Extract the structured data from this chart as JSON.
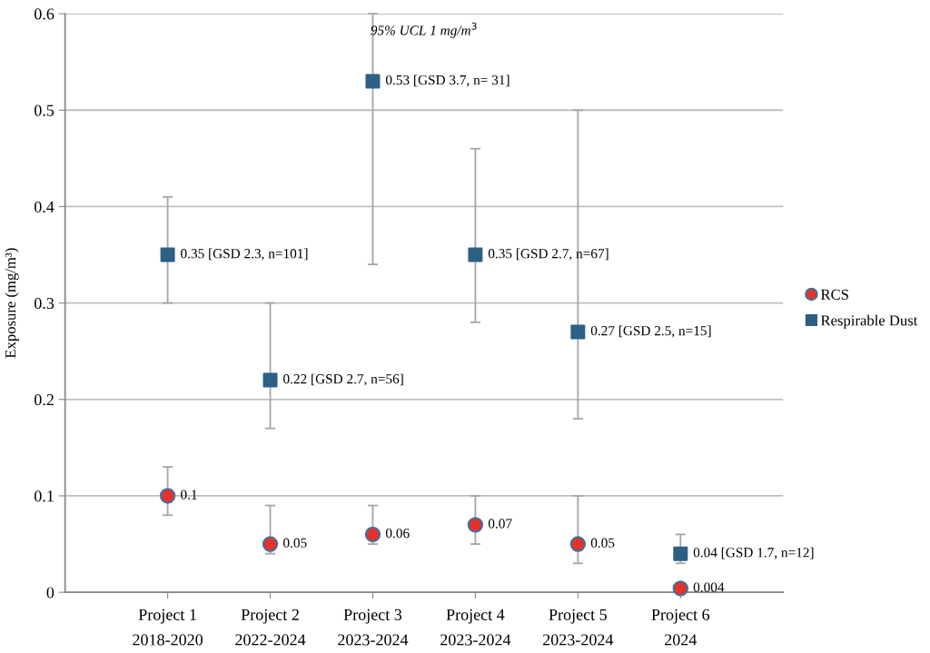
{
  "chart_data": {
    "type": "scatter",
    "ylabel": "Exposure (mg/m³)",
    "categories": [
      "Project 1\n2018-2020",
      "Project 2\n2022-2024",
      "Project 3\n2023-2024",
      "Project 4\n2023-2024",
      "Project 5\n2023-2024",
      "Project 6\n2024"
    ],
    "series": [
      {
        "name": "RCS",
        "color": "#e8302a",
        "marker": "circle",
        "values": [
          0.1,
          0.05,
          0.06,
          0.07,
          0.05,
          0.004
        ],
        "errors": [
          [
            0.08,
            0.13
          ],
          [
            0.04,
            0.09
          ],
          [
            0.05,
            0.09
          ],
          [
            0.05,
            0.1
          ],
          [
            0.03,
            0.1
          ],
          null
        ],
        "value_labels": [
          "0.1",
          "0.05",
          "0.06",
          "0.07",
          "0.05",
          "0.004"
        ]
      },
      {
        "name": "Respirable Dust",
        "color": "#2e5f84",
        "marker": "square",
        "values": [
          0.35,
          0.22,
          0.53,
          0.35,
          0.27,
          0.04
        ],
        "errors": [
          [
            0.3,
            0.41
          ],
          [
            0.17,
            0.3
          ],
          [
            0.34,
            0.6
          ],
          [
            0.28,
            0.46
          ],
          [
            0.18,
            0.5
          ],
          [
            0.03,
            0.06
          ]
        ],
        "value_labels": [
          "0.35 [GSD 2.3, n=101]",
          "0.22 [GSD 2.7, n=56]",
          "0.53 [GSD 3.7, n= 31]",
          "0.35 [GSD 2.7, n=67]",
          "0.27 [GSD 2.5, n=15]",
          "0.04 [GSD 1.7, n=12]"
        ]
      }
    ],
    "annotations": [
      "95% UCL 1 mg/m$^{3}$"
    ],
    "ylim": [
      0,
      0.6
    ],
    "yticks": [
      0,
      0.1,
      0.2,
      0.3,
      0.4,
      0.5,
      0.6
    ],
    "grid": "y",
    "legend": "right"
  }
}
